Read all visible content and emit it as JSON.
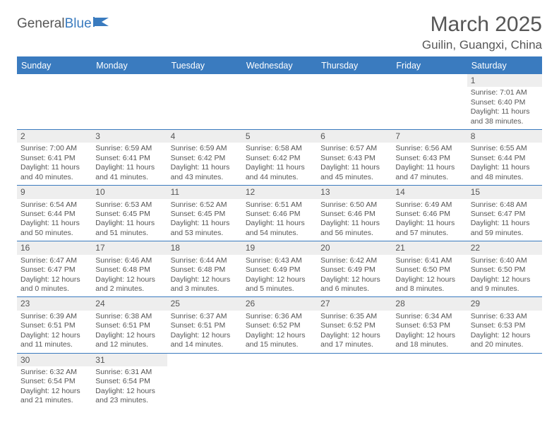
{
  "logo": {
    "main": "General",
    "accent": "Blue"
  },
  "title": "March 2025",
  "location": "Guilin, Guangxi, China",
  "day_labels": [
    "Sunday",
    "Monday",
    "Tuesday",
    "Wednesday",
    "Thursday",
    "Friday",
    "Saturday"
  ],
  "colors": {
    "header_bg": "#3a7bbf",
    "header_text": "#ffffff",
    "rule": "#3a7bbf",
    "text": "#565656",
    "daynum_bg": "#eeeeee",
    "page_bg": "#ffffff"
  },
  "weeks": [
    [
      null,
      null,
      null,
      null,
      null,
      null,
      {
        "n": "1",
        "sr": "Sunrise: 7:01 AM",
        "ss": "Sunset: 6:40 PM",
        "d1": "Daylight: 11 hours",
        "d2": "and 38 minutes."
      }
    ],
    [
      {
        "n": "2",
        "sr": "Sunrise: 7:00 AM",
        "ss": "Sunset: 6:41 PM",
        "d1": "Daylight: 11 hours",
        "d2": "and 40 minutes."
      },
      {
        "n": "3",
        "sr": "Sunrise: 6:59 AM",
        "ss": "Sunset: 6:41 PM",
        "d1": "Daylight: 11 hours",
        "d2": "and 41 minutes."
      },
      {
        "n": "4",
        "sr": "Sunrise: 6:59 AM",
        "ss": "Sunset: 6:42 PM",
        "d1": "Daylight: 11 hours",
        "d2": "and 43 minutes."
      },
      {
        "n": "5",
        "sr": "Sunrise: 6:58 AM",
        "ss": "Sunset: 6:42 PM",
        "d1": "Daylight: 11 hours",
        "d2": "and 44 minutes."
      },
      {
        "n": "6",
        "sr": "Sunrise: 6:57 AM",
        "ss": "Sunset: 6:43 PM",
        "d1": "Daylight: 11 hours",
        "d2": "and 45 minutes."
      },
      {
        "n": "7",
        "sr": "Sunrise: 6:56 AM",
        "ss": "Sunset: 6:43 PM",
        "d1": "Daylight: 11 hours",
        "d2": "and 47 minutes."
      },
      {
        "n": "8",
        "sr": "Sunrise: 6:55 AM",
        "ss": "Sunset: 6:44 PM",
        "d1": "Daylight: 11 hours",
        "d2": "and 48 minutes."
      }
    ],
    [
      {
        "n": "9",
        "sr": "Sunrise: 6:54 AM",
        "ss": "Sunset: 6:44 PM",
        "d1": "Daylight: 11 hours",
        "d2": "and 50 minutes."
      },
      {
        "n": "10",
        "sr": "Sunrise: 6:53 AM",
        "ss": "Sunset: 6:45 PM",
        "d1": "Daylight: 11 hours",
        "d2": "and 51 minutes."
      },
      {
        "n": "11",
        "sr": "Sunrise: 6:52 AM",
        "ss": "Sunset: 6:45 PM",
        "d1": "Daylight: 11 hours",
        "d2": "and 53 minutes."
      },
      {
        "n": "12",
        "sr": "Sunrise: 6:51 AM",
        "ss": "Sunset: 6:46 PM",
        "d1": "Daylight: 11 hours",
        "d2": "and 54 minutes."
      },
      {
        "n": "13",
        "sr": "Sunrise: 6:50 AM",
        "ss": "Sunset: 6:46 PM",
        "d1": "Daylight: 11 hours",
        "d2": "and 56 minutes."
      },
      {
        "n": "14",
        "sr": "Sunrise: 6:49 AM",
        "ss": "Sunset: 6:46 PM",
        "d1": "Daylight: 11 hours",
        "d2": "and 57 minutes."
      },
      {
        "n": "15",
        "sr": "Sunrise: 6:48 AM",
        "ss": "Sunset: 6:47 PM",
        "d1": "Daylight: 11 hours",
        "d2": "and 59 minutes."
      }
    ],
    [
      {
        "n": "16",
        "sr": "Sunrise: 6:47 AM",
        "ss": "Sunset: 6:47 PM",
        "d1": "Daylight: 12 hours",
        "d2": "and 0 minutes."
      },
      {
        "n": "17",
        "sr": "Sunrise: 6:46 AM",
        "ss": "Sunset: 6:48 PM",
        "d1": "Daylight: 12 hours",
        "d2": "and 2 minutes."
      },
      {
        "n": "18",
        "sr": "Sunrise: 6:44 AM",
        "ss": "Sunset: 6:48 PM",
        "d1": "Daylight: 12 hours",
        "d2": "and 3 minutes."
      },
      {
        "n": "19",
        "sr": "Sunrise: 6:43 AM",
        "ss": "Sunset: 6:49 PM",
        "d1": "Daylight: 12 hours",
        "d2": "and 5 minutes."
      },
      {
        "n": "20",
        "sr": "Sunrise: 6:42 AM",
        "ss": "Sunset: 6:49 PM",
        "d1": "Daylight: 12 hours",
        "d2": "and 6 minutes."
      },
      {
        "n": "21",
        "sr": "Sunrise: 6:41 AM",
        "ss": "Sunset: 6:50 PM",
        "d1": "Daylight: 12 hours",
        "d2": "and 8 minutes."
      },
      {
        "n": "22",
        "sr": "Sunrise: 6:40 AM",
        "ss": "Sunset: 6:50 PM",
        "d1": "Daylight: 12 hours",
        "d2": "and 9 minutes."
      }
    ],
    [
      {
        "n": "23",
        "sr": "Sunrise: 6:39 AM",
        "ss": "Sunset: 6:51 PM",
        "d1": "Daylight: 12 hours",
        "d2": "and 11 minutes."
      },
      {
        "n": "24",
        "sr": "Sunrise: 6:38 AM",
        "ss": "Sunset: 6:51 PM",
        "d1": "Daylight: 12 hours",
        "d2": "and 12 minutes."
      },
      {
        "n": "25",
        "sr": "Sunrise: 6:37 AM",
        "ss": "Sunset: 6:51 PM",
        "d1": "Daylight: 12 hours",
        "d2": "and 14 minutes."
      },
      {
        "n": "26",
        "sr": "Sunrise: 6:36 AM",
        "ss": "Sunset: 6:52 PM",
        "d1": "Daylight: 12 hours",
        "d2": "and 15 minutes."
      },
      {
        "n": "27",
        "sr": "Sunrise: 6:35 AM",
        "ss": "Sunset: 6:52 PM",
        "d1": "Daylight: 12 hours",
        "d2": "and 17 minutes."
      },
      {
        "n": "28",
        "sr": "Sunrise: 6:34 AM",
        "ss": "Sunset: 6:53 PM",
        "d1": "Daylight: 12 hours",
        "d2": "and 18 minutes."
      },
      {
        "n": "29",
        "sr": "Sunrise: 6:33 AM",
        "ss": "Sunset: 6:53 PM",
        "d1": "Daylight: 12 hours",
        "d2": "and 20 minutes."
      }
    ],
    [
      {
        "n": "30",
        "sr": "Sunrise: 6:32 AM",
        "ss": "Sunset: 6:54 PM",
        "d1": "Daylight: 12 hours",
        "d2": "and 21 minutes."
      },
      {
        "n": "31",
        "sr": "Sunrise: 6:31 AM",
        "ss": "Sunset: 6:54 PM",
        "d1": "Daylight: 12 hours",
        "d2": "and 23 minutes."
      },
      null,
      null,
      null,
      null,
      null
    ]
  ]
}
